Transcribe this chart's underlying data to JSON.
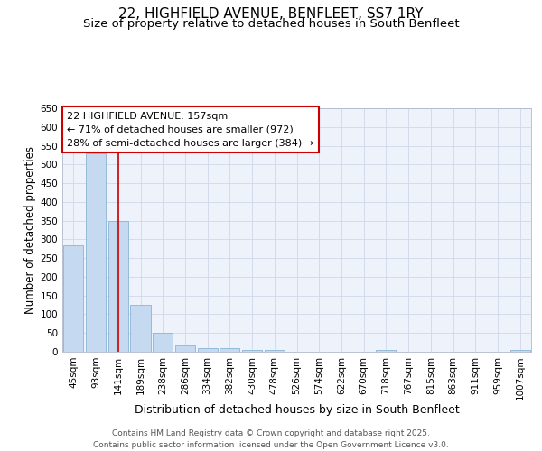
{
  "title1": "22, HIGHFIELD AVENUE, BENFLEET, SS7 1RY",
  "title2": "Size of property relative to detached houses in South Benfleet",
  "xlabel": "Distribution of detached houses by size in South Benfleet",
  "ylabel": "Number of detached properties",
  "bar_color": "#c5d9f1",
  "bar_edge_color": "#8ab4d8",
  "background_color": "#eef2fb",
  "grid_color": "#d0d8e8",
  "categories": [
    "45sqm",
    "93sqm",
    "141sqm",
    "189sqm",
    "238sqm",
    "286sqm",
    "334sqm",
    "382sqm",
    "430sqm",
    "478sqm",
    "526sqm",
    "574sqm",
    "622sqm",
    "670sqm",
    "718sqm",
    "767sqm",
    "815sqm",
    "863sqm",
    "911sqm",
    "959sqm",
    "1007sqm"
  ],
  "values": [
    285,
    530,
    350,
    125,
    50,
    16,
    10,
    10,
    5,
    5,
    0,
    0,
    0,
    0,
    5,
    0,
    0,
    0,
    0,
    0,
    5
  ],
  "ylim": [
    0,
    650
  ],
  "yticks": [
    0,
    50,
    100,
    150,
    200,
    250,
    300,
    350,
    400,
    450,
    500,
    550,
    600,
    650
  ],
  "red_line_x": 2,
  "annotation_line1": "22 HIGHFIELD AVENUE: 157sqm",
  "annotation_line2": "← 71% of detached houses are smaller (972)",
  "annotation_line3": "28% of semi-detached houses are larger (384) →",
  "annotation_box_color": "#ffffff",
  "annotation_box_edge": "#cc0000",
  "red_line_color": "#cc0000",
  "footer_text": "Contains HM Land Registry data © Crown copyright and database right 2025.\nContains public sector information licensed under the Open Government Licence v3.0.",
  "title1_fontsize": 11,
  "title2_fontsize": 9.5,
  "xlabel_fontsize": 9,
  "ylabel_fontsize": 8.5,
  "tick_fontsize": 7.5,
  "annotation_fontsize": 8,
  "footer_fontsize": 6.5
}
